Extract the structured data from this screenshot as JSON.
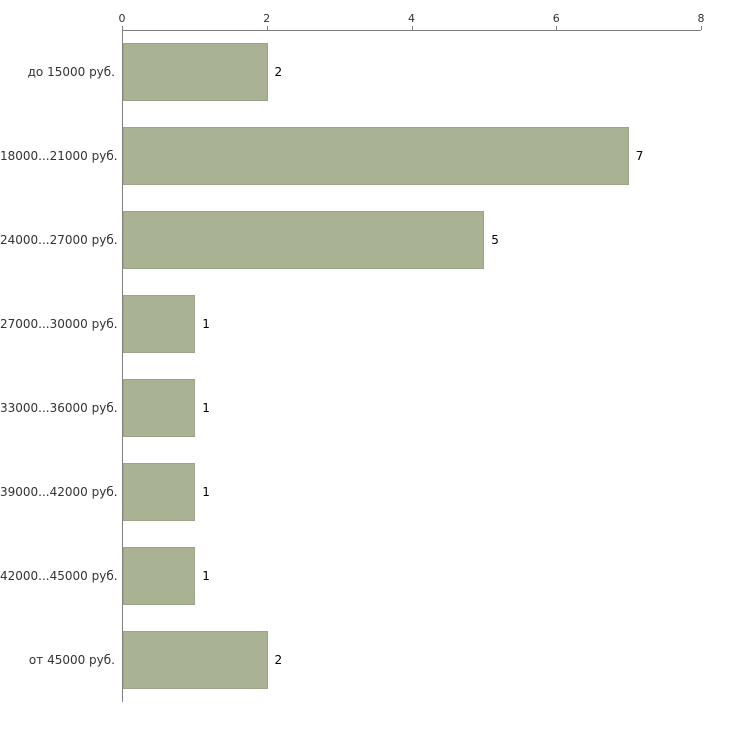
{
  "chart_data": {
    "type": "bar",
    "orientation": "horizontal",
    "title": "",
    "xlabel": "",
    "ylabel": "",
    "categories": [
      "до 15000 руб.",
      "18000...21000 руб.",
      "24000...27000 руб.",
      "27000...30000 руб.",
      "33000...36000 руб.",
      "39000...42000 руб.",
      "42000...45000 руб.",
      "от 45000 руб."
    ],
    "values": [
      2,
      7,
      5,
      1,
      1,
      1,
      1,
      2
    ],
    "x_ticks": [
      0,
      2,
      4,
      6,
      8
    ],
    "xlim": [
      0,
      8
    ],
    "grid": "off",
    "legend": "none",
    "bar_color": "#a9b293",
    "bar_border_color": "#9aa486",
    "axis_color": "#808080",
    "text_color": "#333333",
    "background_color": "#ffffff"
  }
}
